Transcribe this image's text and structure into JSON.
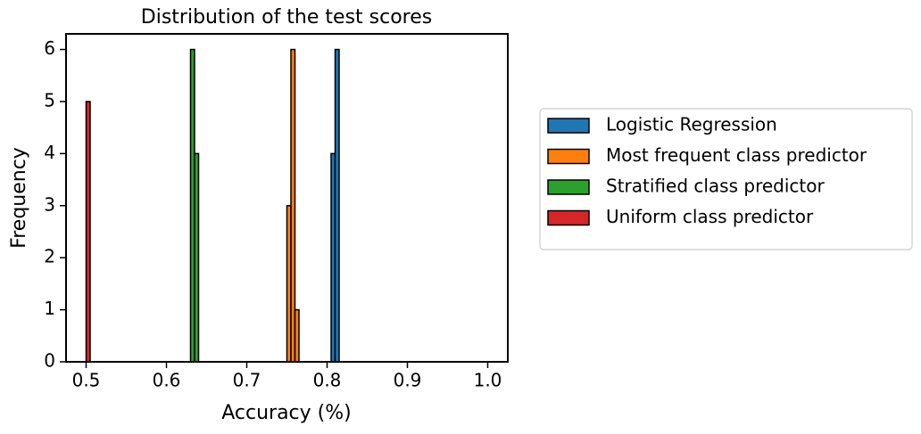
{
  "chart_data": {
    "type": "histogram",
    "title": "Distribution of the test scores",
    "x_label": "Accuracy (%)",
    "y_label": "Frequency",
    "series": [
      {
        "name": "Logistic Regression",
        "color": "#1f77b4",
        "bins": [
          0.805,
          0.81,
          0.815
        ],
        "values": [
          4,
          6
        ]
      },
      {
        "name": "Most frequent class predictor",
        "color": "#ff7f0e",
        "bins": [
          0.75,
          0.755,
          0.76,
          0.765
        ],
        "values": [
          3,
          6,
          1
        ]
      },
      {
        "name": "Stratified class predictor",
        "color": "#2ca02c",
        "bins": [
          0.63,
          0.635,
          0.64
        ],
        "values": [
          6,
          4
        ]
      },
      {
        "name": "Uniform class predictor",
        "color": "#d62728",
        "bins": [
          0.5,
          0.505
        ],
        "values": [
          5
        ]
      }
    ],
    "xlim": [
      0.475,
      1.025
    ],
    "xticks": [
      0.5,
      0.6,
      0.7,
      0.8,
      0.9,
      {
        "value": 1,
        "label": "1.0"
      }
    ],
    "ylim": [
      0,
      6.3
    ],
    "yticks": [
      0,
      1,
      2,
      3,
      4,
      5,
      6
    ],
    "grid": false,
    "legend": "outside right"
  }
}
